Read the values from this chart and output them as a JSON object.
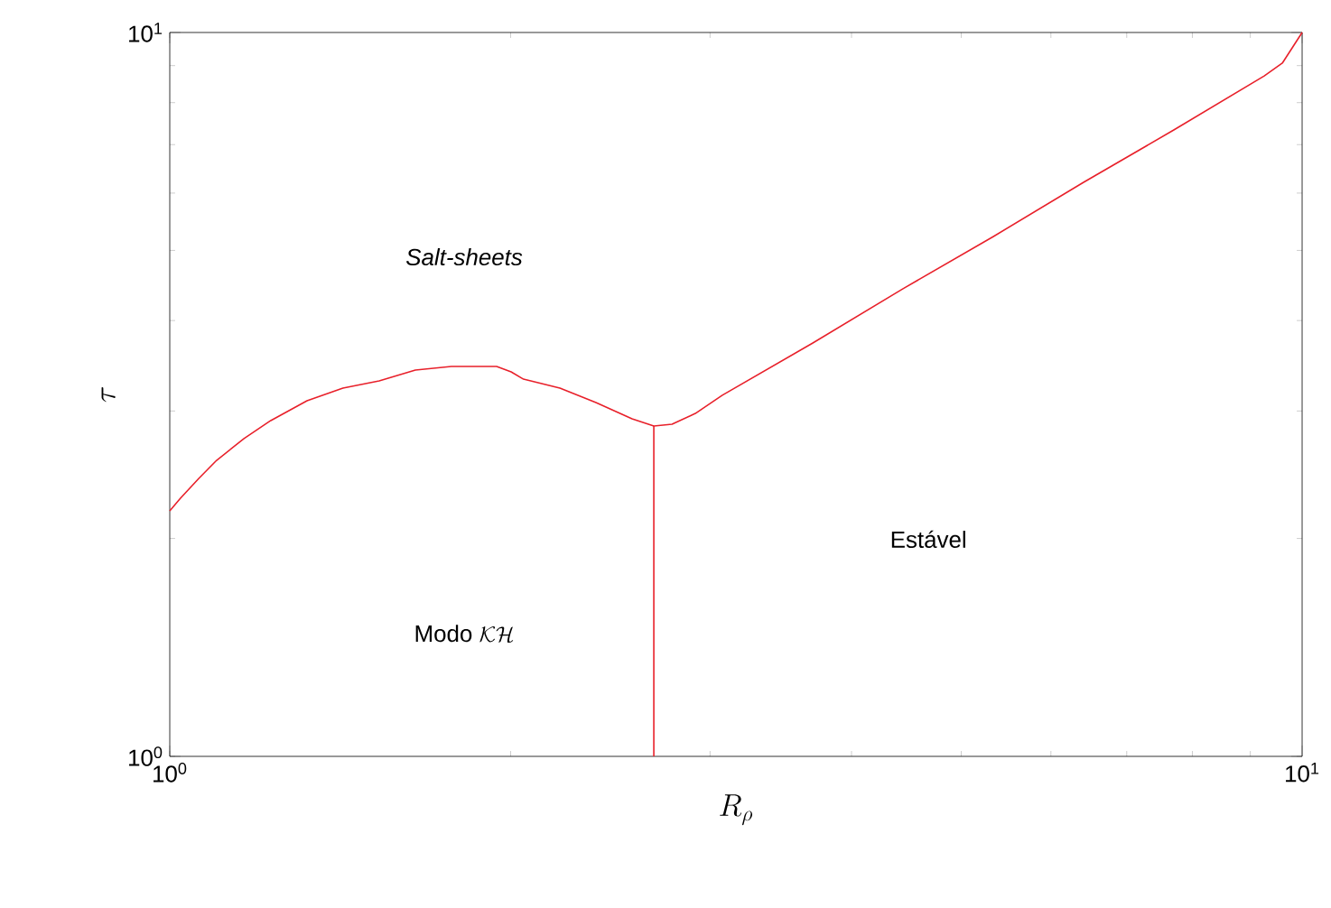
{
  "chart_data": {
    "type": "line",
    "log": "xy",
    "xlabel": "R_\\rho",
    "ylabel": "\\tau",
    "xlim": [
      1,
      10
    ],
    "ylim": [
      1,
      10
    ],
    "xticks": [
      {
        "value": 1,
        "label": "10$^{0}$"
      },
      {
        "value": 10,
        "label": "10$^{1}$"
      }
    ],
    "yticks": [
      {
        "value": 1,
        "label": "10$^{0}$"
      },
      {
        "value": 10,
        "label": "10$^{1}$"
      }
    ],
    "series": [
      {
        "color": "#e8202a",
        "x": [
          1.0,
          1.022,
          1.061,
          1.1,
          1.163,
          1.228,
          1.322,
          1.422,
          1.531,
          1.648,
          1.773,
          1.944,
          2.002,
          2.053,
          2.211,
          2.379,
          2.56,
          2.676,
          2.777,
          2.912,
          3.076,
          3.698,
          4.442,
          5.339,
          6.412,
          7.704,
          9.259,
          9.605,
          10.0
        ],
        "values": [
          2.184,
          2.273,
          2.421,
          2.564,
          2.748,
          2.91,
          3.1,
          3.227,
          3.302,
          3.418,
          3.457,
          3.457,
          3.398,
          3.32,
          3.227,
          3.082,
          2.927,
          2.86,
          2.876,
          2.977,
          3.154,
          3.725,
          4.426,
          5.227,
          6.209,
          7.334,
          8.711,
          9.071,
          10.0
        ]
      },
      {
        "color": "#e8202a",
        "x": [
          2.676,
          2.676
        ],
        "values": [
          1.0,
          2.86
        ]
      }
    ],
    "annotations": [
      "Salt-sheets",
      "\\mbox{Modo }\\mathcal{KH}",
      "Estável"
    ]
  }
}
